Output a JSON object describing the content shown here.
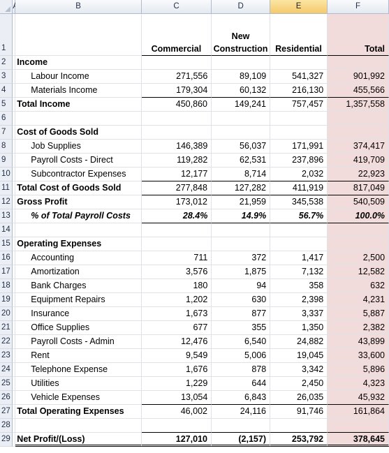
{
  "columns": [
    "A",
    "B",
    "C",
    "D",
    "E",
    "F"
  ],
  "selected_column": "E",
  "header": {
    "row_num": "1",
    "commercial": "Commercial",
    "new_construction_line1": "New",
    "new_construction_line2": "Construction",
    "residential": "Residential",
    "total": "Total"
  },
  "rows": [
    {
      "n": "2",
      "label": "Income",
      "style": "bold",
      "c": "",
      "d": "",
      "e": "",
      "f": ""
    },
    {
      "n": "3",
      "label": "Labour Income",
      "style": "indent",
      "c": "271,556",
      "d": "89,109",
      "e": "541,327",
      "f": "901,992"
    },
    {
      "n": "4",
      "label": "Materials Income",
      "style": "indent",
      "c": "179,304",
      "d": "60,132",
      "e": "216,130",
      "f": "455,566",
      "line": "under"
    },
    {
      "n": "5",
      "label": "Total Income",
      "style": "bold",
      "c": "450,860",
      "d": "149,241",
      "e": "757,457",
      "f": "1,357,558"
    },
    {
      "n": "6",
      "label": "",
      "style": "",
      "c": "",
      "d": "",
      "e": "",
      "f": ""
    },
    {
      "n": "7",
      "label": "Cost of Goods Sold",
      "style": "bold",
      "c": "",
      "d": "",
      "e": "",
      "f": ""
    },
    {
      "n": "8",
      "label": "Job Supplies",
      "style": "indent",
      "c": "146,389",
      "d": "56,037",
      "e": "171,991",
      "f": "374,417"
    },
    {
      "n": "9",
      "label": "Payroll Costs - Direct",
      "style": "indent",
      "c": "119,282",
      "d": "62,531",
      "e": "237,896",
      "f": "419,709"
    },
    {
      "n": "10",
      "label": "Subcontractor Expenses",
      "style": "indent",
      "c": "12,177",
      "d": "8,714",
      "e": "2,032",
      "f": "22,923",
      "line": "under"
    },
    {
      "n": "11",
      "label": "Total Cost of Goods Sold",
      "style": "bold",
      "c": "277,848",
      "d": "127,282",
      "e": "411,919",
      "f": "817,049",
      "line": "under"
    },
    {
      "n": "12",
      "label": "Gross Profit",
      "style": "bold",
      "c": "173,012",
      "d": "21,959",
      "e": "345,538",
      "f": "540,509"
    },
    {
      "n": "13",
      "label": "% of Total Payroll Costs",
      "style": "bolditalic",
      "c": "28.4%",
      "d": "14.9%",
      "e": "56.7%",
      "f": "100.0%",
      "line": "under"
    },
    {
      "n": "14",
      "label": "",
      "style": "",
      "c": "",
      "d": "",
      "e": "",
      "f": ""
    },
    {
      "n": "15",
      "label": "Operating Expenses",
      "style": "bold",
      "c": "",
      "d": "",
      "e": "",
      "f": ""
    },
    {
      "n": "16",
      "label": "Accounting",
      "style": "indent",
      "c": "711",
      "d": "372",
      "e": "1,417",
      "f": "2,500"
    },
    {
      "n": "17",
      "label": "Amortization",
      "style": "indent",
      "c": "3,576",
      "d": "1,875",
      "e": "7,132",
      "f": "12,582"
    },
    {
      "n": "18",
      "label": "Bank Charges",
      "style": "indent",
      "c": "180",
      "d": "94",
      "e": "358",
      "f": "632"
    },
    {
      "n": "19",
      "label": "Equipment Repairs",
      "style": "indent",
      "c": "1,202",
      "d": "630",
      "e": "2,398",
      "f": "4,231"
    },
    {
      "n": "20",
      "label": "Insurance",
      "style": "indent",
      "c": "1,673",
      "d": "877",
      "e": "3,337",
      "f": "5,887"
    },
    {
      "n": "21",
      "label": "Office Supplies",
      "style": "indent",
      "c": "677",
      "d": "355",
      "e": "1,350",
      "f": "2,382"
    },
    {
      "n": "22",
      "label": "Payroll Costs - Admin",
      "style": "indent",
      "c": "12,476",
      "d": "6,540",
      "e": "24,882",
      "f": "43,899"
    },
    {
      "n": "23",
      "label": "Rent",
      "style": "indent",
      "c": "9,549",
      "d": "5,006",
      "e": "19,045",
      "f": "33,600"
    },
    {
      "n": "24",
      "label": "Telephone Expense",
      "style": "indent",
      "c": "1,676",
      "d": "878",
      "e": "3,342",
      "f": "5,896"
    },
    {
      "n": "25",
      "label": "Utilities",
      "style": "indent",
      "c": "1,229",
      "d": "644",
      "e": "2,450",
      "f": "4,323"
    },
    {
      "n": "26",
      "label": "Vehicle Expenses",
      "style": "indent",
      "c": "13,054",
      "d": "6,843",
      "e": "26,035",
      "f": "45,932",
      "line": "under"
    },
    {
      "n": "27",
      "label": "Total Operating Expenses",
      "style": "bold",
      "c": "46,002",
      "d": "24,116",
      "e": "91,746",
      "f": "161,864"
    },
    {
      "n": "28",
      "label": "",
      "style": "",
      "c": "",
      "d": "",
      "e": "",
      "f": "",
      "line": "under"
    },
    {
      "n": "29",
      "label": "Net Profit/(Loss)",
      "style": "bold",
      "c": "127,010",
      "d": "(2,157)",
      "e": "253,792",
      "f": "378,645",
      "line": "dbl"
    }
  ],
  "colors": {
    "total_column_fill": "#f2dcdb",
    "header_bg": "#ebeff5",
    "selected_header": "#f5c96b"
  }
}
